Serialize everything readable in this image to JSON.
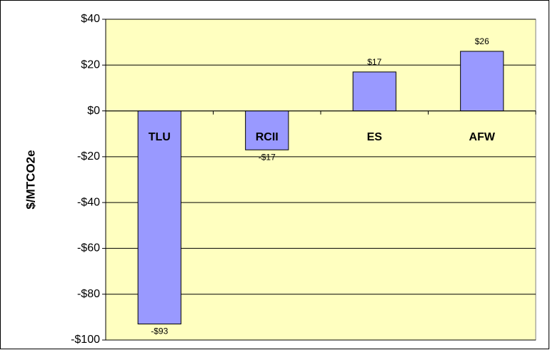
{
  "chart_data": {
    "type": "bar",
    "y_label": "$/MTCO2e",
    "categories": [
      "TLU",
      "RCII",
      "ES",
      "AFW"
    ],
    "values": [
      -93,
      -17,
      17,
      26
    ],
    "value_labels": [
      "-$93",
      "-$17",
      "$17",
      "$26"
    ],
    "color": "#9999ff",
    "plot_background": "#ffffc0",
    "ylim": [
      -100,
      40
    ],
    "yticks": [
      {
        "value": -100,
        "label": "-$100"
      },
      {
        "value": -80,
        "label": "-$80"
      },
      {
        "value": -60,
        "label": "-$60"
      },
      {
        "value": -40,
        "label": "-$40"
      },
      {
        "value": -20,
        "label": "-$20"
      },
      {
        "value": 0,
        "label": "$0"
      },
      {
        "value": 20,
        "label": "$20"
      },
      {
        "value": 40,
        "label": "$40"
      }
    ],
    "grid": true
  }
}
